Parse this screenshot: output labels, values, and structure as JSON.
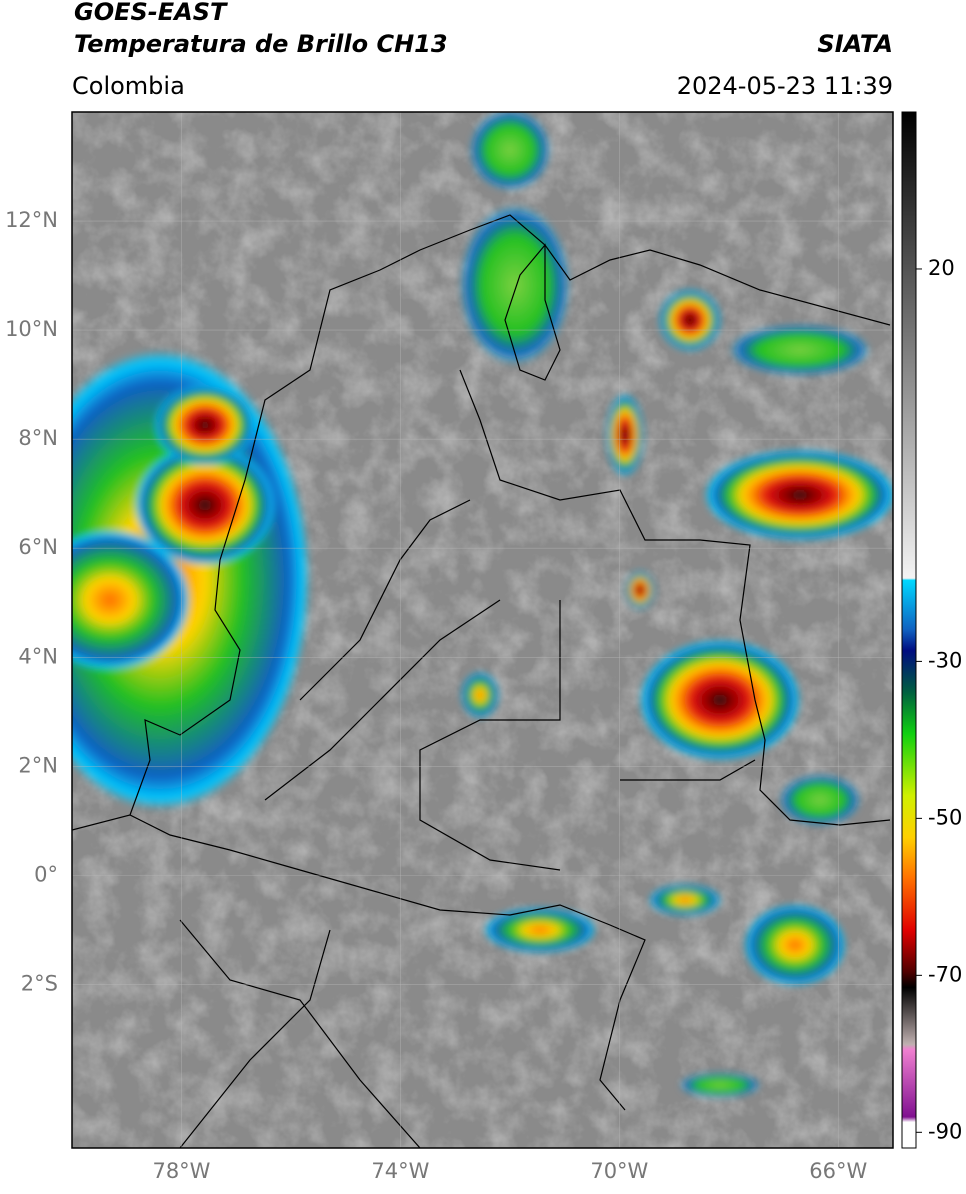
{
  "header": {
    "satellite": "GOES-EAST",
    "product": "Temperatura de Brillo CH13",
    "region": "Colombia",
    "source": "SIATA",
    "datetime": "2024-05-23 11:39"
  },
  "map": {
    "xlim": [
      -80,
      -65
    ],
    "ylim": [
      -5,
      14
    ],
    "xticks": [
      {
        "value": -78,
        "label": "78°W"
      },
      {
        "value": -74,
        "label": "74°W"
      },
      {
        "value": -70,
        "label": "70°W"
      },
      {
        "value": -66,
        "label": "66°W"
      }
    ],
    "yticks": [
      {
        "value": 12,
        "label": "12°N"
      },
      {
        "value": 10,
        "label": "10°N"
      },
      {
        "value": 8,
        "label": "8°N"
      },
      {
        "value": 6,
        "label": "6°N"
      },
      {
        "value": 4,
        "label": "4°N"
      },
      {
        "value": 2,
        "label": "2°N"
      },
      {
        "value": 0,
        "label": "0°"
      },
      {
        "value": -2,
        "label": "2°S"
      }
    ],
    "grid": true
  },
  "colorbar": {
    "lim": [
      -92,
      40
    ],
    "ticks": [
      20,
      -30,
      -50,
      -70,
      -90
    ]
  }
}
